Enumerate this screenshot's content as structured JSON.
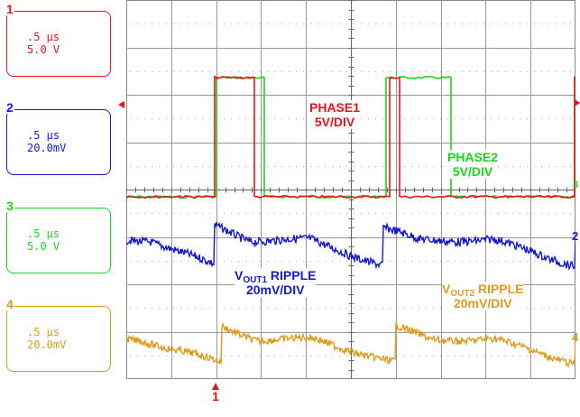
{
  "colors": {
    "ch1": "#e8141b",
    "ch2": "#1818d0",
    "ch3": "#18d818",
    "ch4": "#e09a1c",
    "grid": "#888888"
  },
  "channels": [
    {
      "num": "1",
      "timebase": ".5 µs",
      "scale": "5.0 V",
      "color": "#e8141b"
    },
    {
      "num": "2",
      "timebase": ".5 µs",
      "scale": "20.0mV",
      "color": "#1818d0"
    },
    {
      "num": "3",
      "timebase": ".5 µs",
      "scale": "5.0 V",
      "color": "#18d818"
    },
    {
      "num": "4",
      "timebase": ".5 µs",
      "scale": "20.0mV",
      "color": "#e09a1c"
    }
  ],
  "labels": {
    "phase1_line1": "PHASE1",
    "phase1_line2": "5V/DIV",
    "phase2_line1": "PHASE2",
    "phase2_line2": "5V/DIV",
    "vout1_v": "V",
    "vout1_sub": "OUT1",
    "vout1_rest": " RIPPLE",
    "vout1_line2": "20mV/DIV",
    "vout2_v": "V",
    "vout2_sub": "OUT2",
    "vout2_rest": " RIPPLE",
    "vout2_line2": "20mV/DIV"
  },
  "markers": {
    "trigger": "1",
    "right_ch2": "2",
    "right_ch4": "4",
    "right_ch3": "3"
  },
  "chart_data": {
    "type": "line",
    "title": "",
    "xlabel": "",
    "ylabel": "",
    "grid": true,
    "divisions": {
      "x": 10,
      "y": 8
    },
    "series": [
      {
        "name": "PHASE1",
        "description_label": "5V/DIV",
        "shape": "pulse train"
      },
      {
        "name": "PHASE2",
        "description_label": "5V/DIV",
        "shape": "pulse train"
      },
      {
        "name": "VOUT1 RIPPLE",
        "description_label": "20mV/DIV",
        "shape": "ripple"
      },
      {
        "name": "VOUT2 RIPPLE",
        "description_label": "20mV/DIV",
        "shape": "ripple"
      }
    ]
  }
}
